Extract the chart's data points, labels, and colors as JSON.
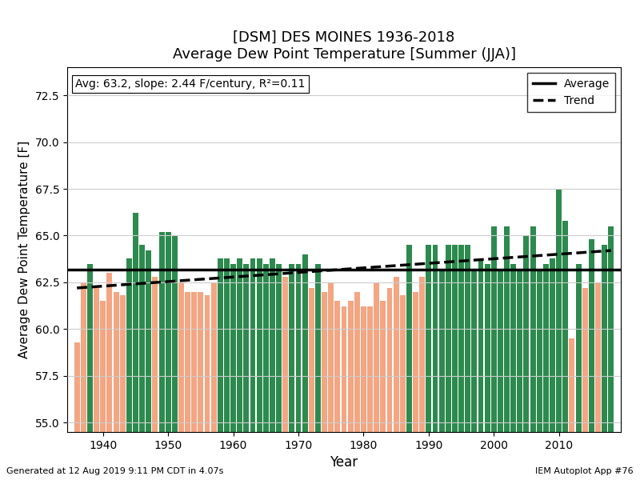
{
  "title1": "[DSM] DES MOINES 1936-2018",
  "title2": "Average Dew Point Temperature [Summer (JJA)]",
  "xlabel": "Year",
  "ylabel": "Average Dew Point Temperature [F]",
  "avg": 63.2,
  "slope_per_century": 2.44,
  "r2": 0.11,
  "annotation": "Avg: 63.2, slope: 2.44 F/century, R²=0.11",
  "footer_left": "Generated at 12 Aug 2019 9:11 PM CDT in 4.07s",
  "footer_right": "IEM Autoplot App #76",
  "ylim": [
    54.5,
    74.0
  ],
  "yticks": [
    55.0,
    57.5,
    60.0,
    62.5,
    65.0,
    67.5,
    70.0,
    72.5
  ],
  "color_above": "#2d8a4e",
  "color_below": "#f4a582",
  "avg_line_color": "#000000",
  "trend_line_color": "#000000",
  "bg_color": "#ffffff",
  "years": [
    1936,
    1937,
    1938,
    1939,
    1940,
    1941,
    1942,
    1943,
    1944,
    1945,
    1946,
    1947,
    1948,
    1949,
    1950,
    1951,
    1952,
    1953,
    1954,
    1955,
    1956,
    1957,
    1958,
    1959,
    1960,
    1961,
    1962,
    1963,
    1964,
    1965,
    1966,
    1967,
    1968,
    1969,
    1970,
    1971,
    1972,
    1973,
    1974,
    1975,
    1976,
    1977,
    1978,
    1979,
    1980,
    1981,
    1982,
    1983,
    1984,
    1985,
    1986,
    1987,
    1988,
    1989,
    1990,
    1991,
    1992,
    1993,
    1994,
    1995,
    1996,
    1997,
    1998,
    1999,
    2000,
    2001,
    2002,
    2003,
    2004,
    2005,
    2006,
    2007,
    2008,
    2009,
    2010,
    2011,
    2012,
    2013,
    2014,
    2015,
    2016,
    2017,
    2018
  ],
  "values": [
    59.3,
    62.5,
    63.5,
    62.2,
    61.5,
    63.0,
    62.0,
    61.8,
    63.8,
    66.2,
    64.5,
    64.2,
    62.8,
    65.2,
    65.2,
    65.0,
    62.5,
    62.0,
    62.0,
    62.0,
    61.8,
    62.5,
    63.8,
    63.8,
    63.5,
    63.8,
    63.5,
    63.8,
    63.8,
    63.5,
    63.8,
    63.5,
    62.8,
    63.5,
    63.5,
    64.0,
    62.2,
    63.5,
    62.0,
    62.5,
    61.5,
    61.2,
    61.5,
    62.0,
    61.2,
    61.2,
    62.5,
    61.5,
    62.2,
    62.8,
    61.8,
    64.5,
    62.0,
    62.8,
    64.5,
    64.5,
    63.2,
    64.5,
    64.5,
    64.5,
    64.5,
    63.2,
    63.8,
    63.5,
    65.5,
    63.2,
    65.5,
    63.5,
    63.2,
    65.0,
    65.5,
    63.2,
    63.5,
    63.8,
    67.5,
    65.8,
    59.5,
    63.5,
    62.2,
    64.8,
    62.5,
    64.5,
    65.5
  ]
}
